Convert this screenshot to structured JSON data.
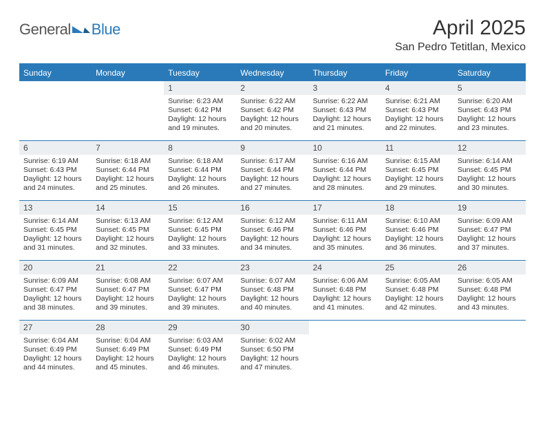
{
  "brand": {
    "part1": "General",
    "part2": "Blue"
  },
  "title": "April 2025",
  "subtitle": "San Pedro Tetitlan, Mexico",
  "colors": {
    "accent": "#2a7ab9",
    "daynum_bg": "#eceff1",
    "text": "#333333",
    "background": "#ffffff"
  },
  "dow": [
    "Sunday",
    "Monday",
    "Tuesday",
    "Wednesday",
    "Thursday",
    "Friday",
    "Saturday"
  ],
  "weeks": [
    [
      null,
      null,
      {
        "n": "1",
        "sunrise": "Sunrise: 6:23 AM",
        "sunset": "Sunset: 6:42 PM",
        "day": "Daylight: 12 hours and 19 minutes."
      },
      {
        "n": "2",
        "sunrise": "Sunrise: 6:22 AM",
        "sunset": "Sunset: 6:42 PM",
        "day": "Daylight: 12 hours and 20 minutes."
      },
      {
        "n": "3",
        "sunrise": "Sunrise: 6:22 AM",
        "sunset": "Sunset: 6:43 PM",
        "day": "Daylight: 12 hours and 21 minutes."
      },
      {
        "n": "4",
        "sunrise": "Sunrise: 6:21 AM",
        "sunset": "Sunset: 6:43 PM",
        "day": "Daylight: 12 hours and 22 minutes."
      },
      {
        "n": "5",
        "sunrise": "Sunrise: 6:20 AM",
        "sunset": "Sunset: 6:43 PM",
        "day": "Daylight: 12 hours and 23 minutes."
      }
    ],
    [
      {
        "n": "6",
        "sunrise": "Sunrise: 6:19 AM",
        "sunset": "Sunset: 6:43 PM",
        "day": "Daylight: 12 hours and 24 minutes."
      },
      {
        "n": "7",
        "sunrise": "Sunrise: 6:18 AM",
        "sunset": "Sunset: 6:44 PM",
        "day": "Daylight: 12 hours and 25 minutes."
      },
      {
        "n": "8",
        "sunrise": "Sunrise: 6:18 AM",
        "sunset": "Sunset: 6:44 PM",
        "day": "Daylight: 12 hours and 26 minutes."
      },
      {
        "n": "9",
        "sunrise": "Sunrise: 6:17 AM",
        "sunset": "Sunset: 6:44 PM",
        "day": "Daylight: 12 hours and 27 minutes."
      },
      {
        "n": "10",
        "sunrise": "Sunrise: 6:16 AM",
        "sunset": "Sunset: 6:44 PM",
        "day": "Daylight: 12 hours and 28 minutes."
      },
      {
        "n": "11",
        "sunrise": "Sunrise: 6:15 AM",
        "sunset": "Sunset: 6:45 PM",
        "day": "Daylight: 12 hours and 29 minutes."
      },
      {
        "n": "12",
        "sunrise": "Sunrise: 6:14 AM",
        "sunset": "Sunset: 6:45 PM",
        "day": "Daylight: 12 hours and 30 minutes."
      }
    ],
    [
      {
        "n": "13",
        "sunrise": "Sunrise: 6:14 AM",
        "sunset": "Sunset: 6:45 PM",
        "day": "Daylight: 12 hours and 31 minutes."
      },
      {
        "n": "14",
        "sunrise": "Sunrise: 6:13 AM",
        "sunset": "Sunset: 6:45 PM",
        "day": "Daylight: 12 hours and 32 minutes."
      },
      {
        "n": "15",
        "sunrise": "Sunrise: 6:12 AM",
        "sunset": "Sunset: 6:45 PM",
        "day": "Daylight: 12 hours and 33 minutes."
      },
      {
        "n": "16",
        "sunrise": "Sunrise: 6:12 AM",
        "sunset": "Sunset: 6:46 PM",
        "day": "Daylight: 12 hours and 34 minutes."
      },
      {
        "n": "17",
        "sunrise": "Sunrise: 6:11 AM",
        "sunset": "Sunset: 6:46 PM",
        "day": "Daylight: 12 hours and 35 minutes."
      },
      {
        "n": "18",
        "sunrise": "Sunrise: 6:10 AM",
        "sunset": "Sunset: 6:46 PM",
        "day": "Daylight: 12 hours and 36 minutes."
      },
      {
        "n": "19",
        "sunrise": "Sunrise: 6:09 AM",
        "sunset": "Sunset: 6:47 PM",
        "day": "Daylight: 12 hours and 37 minutes."
      }
    ],
    [
      {
        "n": "20",
        "sunrise": "Sunrise: 6:09 AM",
        "sunset": "Sunset: 6:47 PM",
        "day": "Daylight: 12 hours and 38 minutes."
      },
      {
        "n": "21",
        "sunrise": "Sunrise: 6:08 AM",
        "sunset": "Sunset: 6:47 PM",
        "day": "Daylight: 12 hours and 39 minutes."
      },
      {
        "n": "22",
        "sunrise": "Sunrise: 6:07 AM",
        "sunset": "Sunset: 6:47 PM",
        "day": "Daylight: 12 hours and 39 minutes."
      },
      {
        "n": "23",
        "sunrise": "Sunrise: 6:07 AM",
        "sunset": "Sunset: 6:48 PM",
        "day": "Daylight: 12 hours and 40 minutes."
      },
      {
        "n": "24",
        "sunrise": "Sunrise: 6:06 AM",
        "sunset": "Sunset: 6:48 PM",
        "day": "Daylight: 12 hours and 41 minutes."
      },
      {
        "n": "25",
        "sunrise": "Sunrise: 6:05 AM",
        "sunset": "Sunset: 6:48 PM",
        "day": "Daylight: 12 hours and 42 minutes."
      },
      {
        "n": "26",
        "sunrise": "Sunrise: 6:05 AM",
        "sunset": "Sunset: 6:48 PM",
        "day": "Daylight: 12 hours and 43 minutes."
      }
    ],
    [
      {
        "n": "27",
        "sunrise": "Sunrise: 6:04 AM",
        "sunset": "Sunset: 6:49 PM",
        "day": "Daylight: 12 hours and 44 minutes."
      },
      {
        "n": "28",
        "sunrise": "Sunrise: 6:04 AM",
        "sunset": "Sunset: 6:49 PM",
        "day": "Daylight: 12 hours and 45 minutes."
      },
      {
        "n": "29",
        "sunrise": "Sunrise: 6:03 AM",
        "sunset": "Sunset: 6:49 PM",
        "day": "Daylight: 12 hours and 46 minutes."
      },
      {
        "n": "30",
        "sunrise": "Sunrise: 6:02 AM",
        "sunset": "Sunset: 6:50 PM",
        "day": "Daylight: 12 hours and 47 minutes."
      },
      null,
      null,
      null
    ]
  ]
}
